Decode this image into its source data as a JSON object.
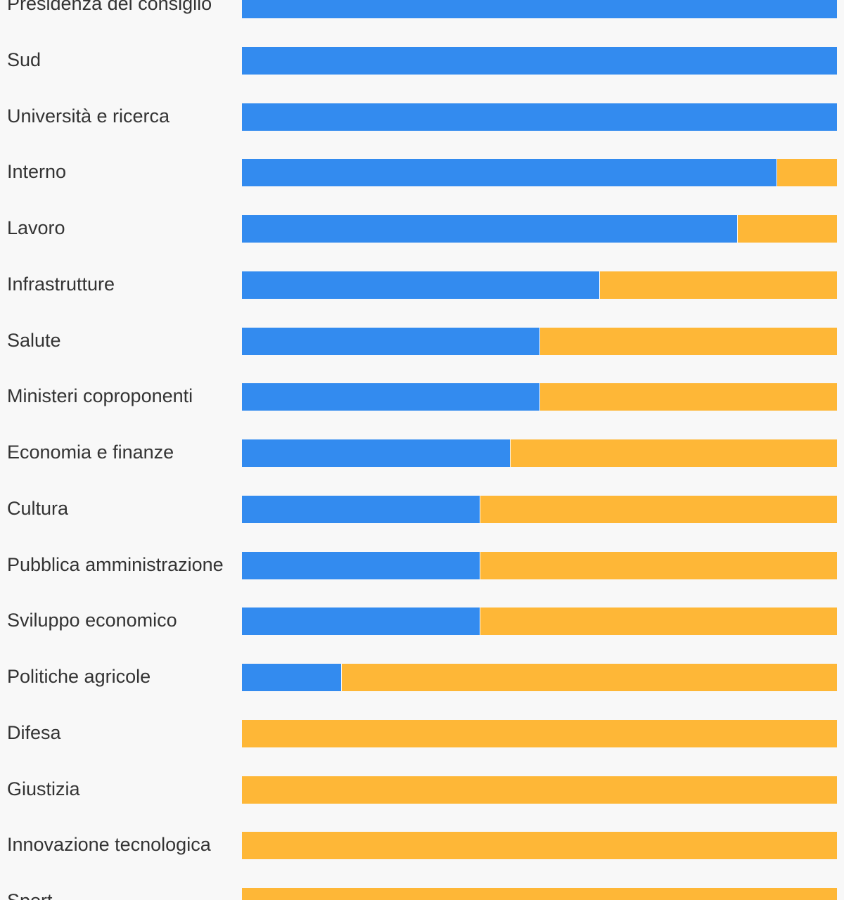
{
  "chart_data": {
    "type": "bar",
    "orientation": "horizontal",
    "stacked": true,
    "normalized": true,
    "categories": [
      "Presidenza del consiglio",
      "Sud",
      "Università e ricerca",
      "Interno",
      "Lavoro",
      "Infrastrutture",
      "Salute",
      "Ministeri coproponenti",
      "Economia e finanze",
      "Cultura",
      "Pubblica amministrazione",
      "Sviluppo economico",
      "Politiche agricole",
      "Difesa",
      "Giustizia",
      "Innovazione tecnologica",
      "Sport"
    ],
    "series": [
      {
        "color": "#338bef",
        "values": [
          100,
          100,
          100,
          89.8,
          83.2,
          60,
          50,
          50,
          45,
          40,
          40,
          40,
          16.7,
          0,
          0,
          0,
          0
        ]
      },
      {
        "color": "#feb737",
        "values": [
          0,
          0,
          0,
          10.2,
          16.8,
          40,
          50,
          50,
          55,
          60,
          60,
          60,
          83.3,
          100,
          100,
          100,
          100
        ]
      }
    ],
    "xlim": [
      0,
      100
    ],
    "grid": false,
    "legend": "none"
  }
}
